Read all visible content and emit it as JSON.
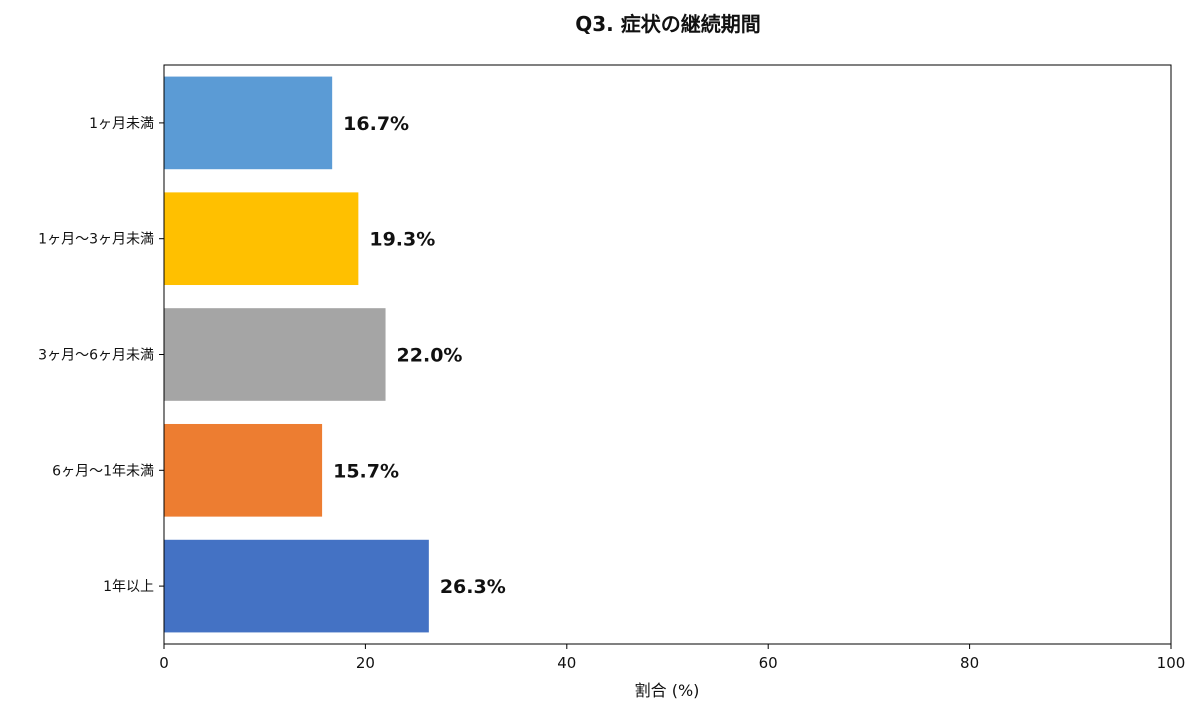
{
  "chart_data": {
    "type": "bar",
    "orientation": "horizontal",
    "title": "Q3. 症状の継続期間",
    "xlabel": "割合 (%)",
    "ylabel": "",
    "xlim": [
      0,
      100
    ],
    "xticks": [
      "0",
      "20",
      "40",
      "60",
      "80",
      "100"
    ],
    "grid": false,
    "categories": [
      "1ヶ月未満",
      "1ヶ月〜3ヶ月未満",
      "3ヶ月〜6ヶ月未満",
      "6ヶ月〜1年未満",
      "1年以上"
    ],
    "values": [
      16.7,
      19.3,
      22.0,
      15.7,
      26.3
    ],
    "value_labels": [
      "16.7%",
      "19.3%",
      "22.0%",
      "15.7%",
      "26.3%"
    ],
    "colors": [
      "#5b9bd5",
      "#ffc000",
      "#a5a5a5",
      "#ed7d31",
      "#4472c4"
    ]
  }
}
